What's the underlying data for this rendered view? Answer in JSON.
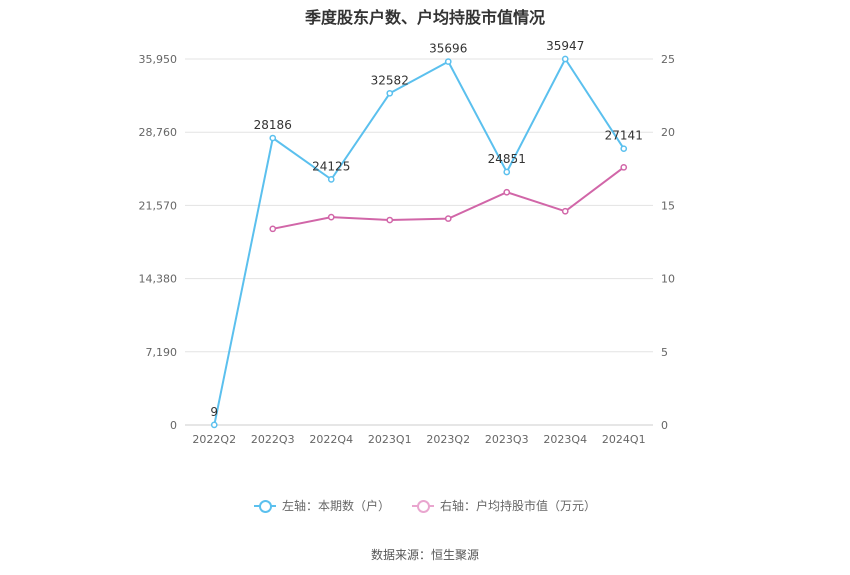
{
  "chart_data": {
    "type": "line",
    "title": "季度股东户数、户均持股市值情况",
    "categories": [
      "2022Q2",
      "2022Q3",
      "2022Q4",
      "2023Q1",
      "2023Q2",
      "2023Q3",
      "2023Q4",
      "2024Q1"
    ],
    "left_axis": {
      "ticks": [
        "0",
        "7,190",
        "14,380",
        "21,570",
        "28,760",
        "35,950"
      ],
      "ylim": [
        0,
        35950
      ]
    },
    "right_axis": {
      "ticks": [
        "0",
        "5",
        "10",
        "15",
        "20",
        "25"
      ],
      "ylim": [
        0,
        25
      ]
    },
    "series": [
      {
        "name": "左轴：本期数（户）",
        "axis": "left",
        "color": "#5bc0ee",
        "values": [
          9,
          28186,
          24125,
          32582,
          35696,
          24851,
          35947,
          27141
        ],
        "labels": [
          "9",
          "28186",
          "24125",
          "32582",
          "35696",
          "24851",
          "35947",
          "27141"
        ]
      },
      {
        "name": "右轴：户均持股市值（万元）",
        "axis": "right",
        "color": "#d166a8",
        "values": [
          null,
          13.4,
          14.2,
          14.0,
          14.1,
          15.9,
          14.6,
          17.6
        ]
      }
    ],
    "grid": true,
    "legend_position": "bottom"
  },
  "source": "数据来源：恒生聚源"
}
